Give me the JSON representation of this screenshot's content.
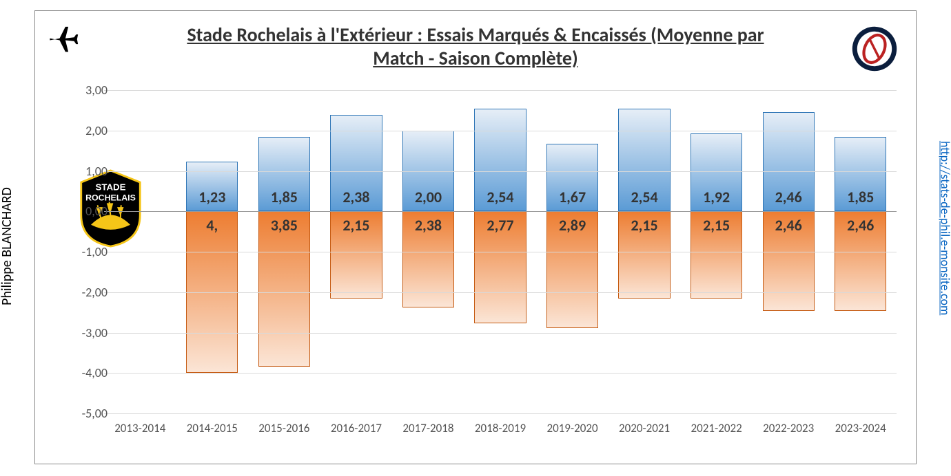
{
  "author": "Philippe BLANCHARD",
  "sitelink": "http://stats-de-phil.e-monsite.com",
  "title_line1": "Stade Rochelais à l'Extérieur : Essais Marqués & Encaissés (Moyenne par",
  "title_line2": "Match - Saison Complète)",
  "chart": {
    "type": "bar",
    "ylim": [
      -5,
      3
    ],
    "ytick_step": 1,
    "ytick_labels": [
      "-5,00",
      "-4,00",
      "-3,00",
      "-2,00",
      "-1,00",
      "0,00",
      "1,00",
      "2,00",
      "3,00"
    ],
    "ytick_values": [
      -5,
      -4,
      -3,
      -2,
      -1,
      0,
      1,
      2,
      3
    ],
    "categories": [
      "2013-2014",
      "2014-2015",
      "2015-2016",
      "2016-2017",
      "2017-2018",
      "2018-2019",
      "2019-2020",
      "2020-2021",
      "2021-2022",
      "2022-2023",
      "2023-2024"
    ],
    "positive": {
      "values": [
        null,
        1.23,
        1.85,
        2.38,
        2.0,
        2.54,
        1.67,
        2.54,
        1.92,
        2.46,
        1.85
      ],
      "labels": [
        null,
        "1,23",
        "1,85",
        "2,38",
        "2,00",
        "2,54",
        "1,67",
        "2,54",
        "1,92",
        "2,46",
        "1,85"
      ],
      "fill_top": "#e6eef7",
      "fill_bottom": "#5b9bd5",
      "border": "#2e75b6"
    },
    "negative": {
      "values": [
        null,
        4.0,
        3.85,
        2.15,
        2.38,
        2.77,
        2.89,
        2.15,
        2.15,
        2.46,
        2.46
      ],
      "labels": [
        null,
        "4,",
        "3,85",
        "2,15",
        "2,38",
        "2,77",
        "2,89",
        "2,15",
        "2,15",
        "2,46",
        "2,46"
      ],
      "fill_top": "#ed7d31",
      "fill_bottom": "#fbe5d6",
      "border": "#c55a11"
    },
    "grid_color": "#d9d9d9",
    "bar_width_ratio": 0.72,
    "label_fontsize": 22,
    "axis_fontsize": 18
  },
  "icons": {
    "plane": "plane-icon",
    "badge": "stats-badge",
    "team": "stade-rochelais-logo"
  }
}
